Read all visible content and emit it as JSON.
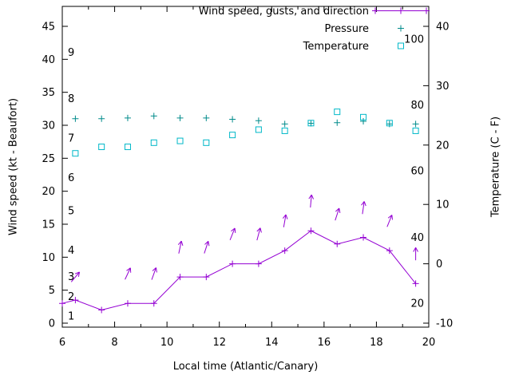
{
  "chart_data": {
    "type": "line",
    "title": "",
    "xlabel": "Local time (Atlantic/Canary)",
    "ylabel": "Wind speed (kt - Beaufort)",
    "y2label": "Temperature (C - F)",
    "x_range": [
      6,
      20
    ],
    "y_range": [
      0,
      45
    ],
    "y2_range": [
      -10,
      40
    ],
    "x_ticks": [
      6,
      8,
      10,
      12,
      14,
      16,
      18,
      20
    ],
    "y_ticks": [
      0,
      5,
      10,
      15,
      20,
      25,
      30,
      35,
      40,
      45
    ],
    "y2_ticks": [
      -10,
      0,
      10,
      20,
      30,
      40
    ],
    "grid": false,
    "legend_position": "top-inside-right",
    "series": [
      {
        "id": "wind-speed",
        "name": "Wind speed, gusts, and direction",
        "type": "line",
        "marker": "plus",
        "axis": "y1",
        "color": "#9400d3",
        "in_legend": true,
        "x": [
          6,
          6.5,
          7.5,
          8.5,
          9.5,
          10.5,
          11.5,
          12.5,
          13.5,
          14.5,
          15.5,
          16.5,
          17.5,
          18.5,
          19.5
        ],
        "y": [
          3,
          3.5,
          2,
          3,
          3,
          7,
          7,
          9,
          9,
          11,
          14,
          12,
          13,
          11,
          6
        ]
      },
      {
        "id": "gust-arrows",
        "name": "Wind gust direction arrows",
        "type": "vector",
        "axis": "y1",
        "color": "#9400d3",
        "in_legend": false,
        "x": [
          6.5,
          8.5,
          9.5,
          10.5,
          11.5,
          12.5,
          13.5,
          14.5,
          15.5,
          16.5,
          17.5,
          18.5,
          19.5
        ],
        "y": [
          7,
          7.5,
          7.5,
          11.5,
          11.5,
          13.5,
          13.5,
          15.5,
          18.5,
          16.5,
          17.5,
          15.5,
          10.5
        ],
        "direction_deg": [
          40,
          25,
          20,
          12,
          18,
          22,
          15,
          10,
          5,
          18,
          8,
          22,
          0
        ]
      },
      {
        "id": "pressure",
        "name": "Pressure",
        "type": "scatter",
        "marker": "plus",
        "axis": "y1",
        "color": "#008b8b",
        "in_legend": true,
        "x": [
          6.5,
          7.5,
          8.5,
          9.5,
          10.5,
          11.5,
          12.5,
          13.5,
          14.5,
          15.5,
          16.5,
          17.5,
          18.5,
          19.5
        ],
        "y": [
          31,
          31,
          31.1,
          31.4,
          31.1,
          31.1,
          30.9,
          30.7,
          30.2,
          30.3,
          30.4,
          30.6,
          30.2,
          30.2
        ]
      },
      {
        "id": "temperature",
        "name": "Temperature",
        "type": "scatter",
        "marker": "open-square",
        "axis": "y2",
        "color": "#00b8c8",
        "in_legend": true,
        "x": [
          6.5,
          7.5,
          8.5,
          9.5,
          10.5,
          11.5,
          12.5,
          13.5,
          14.5,
          15.5,
          16.5,
          17.5,
          18.5,
          19.5
        ],
        "y": [
          18.6,
          19.7,
          19.7,
          20.4,
          20.7,
          20.4,
          21.7,
          22.6,
          22.4,
          23.7,
          25.6,
          24.7,
          23.7,
          22.4
        ]
      }
    ],
    "annotations": {
      "beaufort_scale_labels": {
        "description": "Beaufort force numbers along left inside edge",
        "items": [
          {
            "label": "1",
            "kt": 1
          },
          {
            "label": "2",
            "kt": 4
          },
          {
            "label": "3",
            "kt": 7
          },
          {
            "label": "4",
            "kt": 11
          },
          {
            "label": "5",
            "kt": 17
          },
          {
            "label": "6",
            "kt": 22
          },
          {
            "label": "7",
            "kt": 28
          },
          {
            "label": "8",
            "kt": 34
          },
          {
            "label": "9",
            "kt": 41
          }
        ]
      },
      "fahrenheit_scale_labels": {
        "description": "Fahrenheit values along right inside edge",
        "items": [
          {
            "label": "20",
            "c": -6.7
          },
          {
            "label": "40",
            "c": 4.4
          },
          {
            "label": "60",
            "c": 15.6
          },
          {
            "label": "80",
            "c": 26.7
          },
          {
            "label": "100",
            "c": 37.8
          }
        ]
      }
    },
    "legend": [
      "Wind speed, gusts, and direction",
      "Pressure",
      "Temperature"
    ]
  }
}
